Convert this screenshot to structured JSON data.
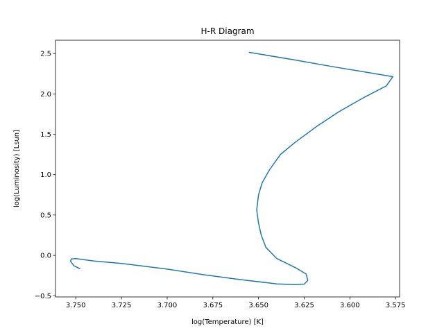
{
  "chart_data": {
    "type": "line",
    "title": "H-R Diagram",
    "xlabel": "log(Temperature) [K]",
    "ylabel": "log(Luminosity) [Lsun]",
    "x_inverted": true,
    "xlim": [
      3.7611,
      3.5728
    ],
    "ylim": [
      -0.515,
      2.665
    ],
    "grid": false,
    "legend": "none",
    "xticks": [
      3.75,
      3.725,
      3.7,
      3.675,
      3.65,
      3.625,
      3.6,
      3.575
    ],
    "xtick_labels": [
      "3.750",
      "3.725",
      "3.700",
      "3.675",
      "3.650",
      "3.625",
      "3.600",
      "3.575"
    ],
    "yticks": [
      -0.5,
      0.0,
      0.5,
      1.0,
      1.5,
      2.0,
      2.5
    ],
    "ytick_labels": [
      "−0.5",
      "0.0",
      "0.5",
      "1.0",
      "1.5",
      "2.0",
      "2.5"
    ],
    "series": [
      {
        "color": "#1f77b4",
        "points": [
          [
            3.7478,
            -0.164
          ],
          [
            3.751,
            -0.13
          ],
          [
            3.7529,
            -0.072
          ],
          [
            3.7524,
            -0.044
          ],
          [
            3.75,
            -0.04
          ],
          [
            3.74,
            -0.07
          ],
          [
            3.725,
            -0.1
          ],
          [
            3.7,
            -0.17
          ],
          [
            3.68,
            -0.24
          ],
          [
            3.66,
            -0.3
          ],
          [
            3.645,
            -0.34
          ],
          [
            3.64,
            -0.354
          ],
          [
            3.63,
            -0.362
          ],
          [
            3.625,
            -0.356
          ],
          [
            3.623,
            -0.31
          ],
          [
            3.624,
            -0.23
          ],
          [
            3.63,
            -0.15
          ],
          [
            3.64,
            -0.04
          ],
          [
            3.646,
            0.1
          ],
          [
            3.6485,
            0.25
          ],
          [
            3.65,
            0.4
          ],
          [
            3.651,
            0.56
          ],
          [
            3.65,
            0.75
          ],
          [
            3.648,
            0.9
          ],
          [
            3.644,
            1.06
          ],
          [
            3.638,
            1.25
          ],
          [
            3.63,
            1.4
          ],
          [
            3.618,
            1.6
          ],
          [
            3.606,
            1.78
          ],
          [
            3.592,
            1.96
          ],
          [
            3.58,
            2.1
          ],
          [
            3.5765,
            2.214
          ],
          [
            3.61,
            2.34
          ],
          [
            3.63,
            2.42
          ],
          [
            3.655,
            2.515
          ]
        ]
      }
    ]
  }
}
